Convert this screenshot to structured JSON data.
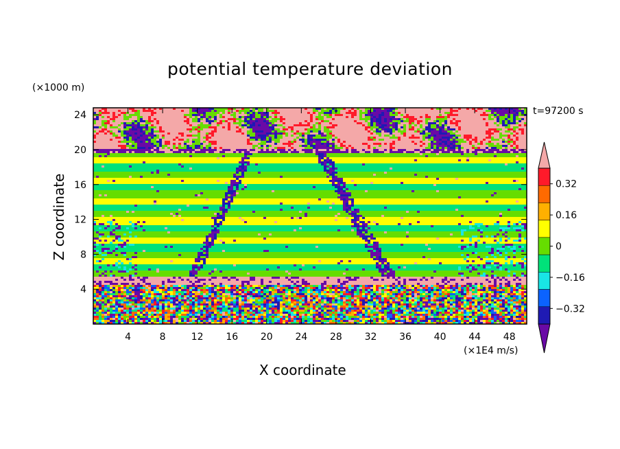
{
  "chart_data": {
    "type": "heatmap",
    "title": "potential temperature deviation",
    "xlabel": "X coordinate",
    "ylabel": "Z coordinate",
    "x_unit": "(×1E4 m/s)",
    "y_unit": "(×1000 m)",
    "time_label": "t=97200 s",
    "x_ticks": [
      4,
      8,
      12,
      16,
      20,
      24,
      28,
      32,
      36,
      40,
      44,
      48
    ],
    "y_ticks": [
      4,
      8,
      12,
      16,
      20,
      24
    ],
    "xlim": [
      0,
      50
    ],
    "ylim": [
      0,
      24.8
    ],
    "colorbar": {
      "colors": [
        "#6a0aa6",
        "#1f1ab3",
        "#0b63ff",
        "#19e5e5",
        "#00e27a",
        "#66dd00",
        "#ffff00",
        "#ffb000",
        "#ff6a00",
        "#ff1a2a",
        "#f4a8a8"
      ],
      "boundaries": [
        -0.4,
        -0.32,
        -0.24,
        -0.16,
        -0.08,
        0,
        0.08,
        0.16,
        0.24,
        0.32,
        0.4
      ],
      "labels": [
        "0.32",
        "0.16",
        "0",
        "−0.16",
        "−0.32"
      ],
      "label_values": [
        0.32,
        0.16,
        0,
        -0.16,
        -0.32
      ],
      "extend": "both"
    },
    "field_description_regions": [
      {
        "z_range": [
          20.2,
          24.8
        ],
        "dominant": "pink with purple and blue patches"
      },
      {
        "z_range": [
          19.8,
          20.2
        ],
        "dominant": "purple band"
      },
      {
        "z_range": [
          5.5,
          19.8
        ],
        "dominant": "horizontal green/yellow bands with purple streaks"
      },
      {
        "z_range": [
          4.5,
          5.5
        ],
        "dominant": "pink band"
      },
      {
        "z_range": [
          0,
          4.5
        ],
        "dominant": "mixed noisy colors"
      }
    ]
  }
}
